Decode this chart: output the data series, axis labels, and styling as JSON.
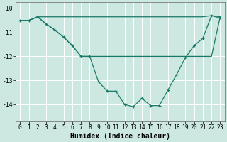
{
  "xlabel": "Humidex (Indice chaleur)",
  "bg_color": "#cce8e0",
  "grid_color": "#ffffff",
  "line_color": "#1a7a6a",
  "xlim": [
    -0.5,
    23.5
  ],
  "ylim": [
    -14.7,
    -9.75
  ],
  "yticks": [
    -14,
    -13,
    -12,
    -11,
    -10
  ],
  "xticks": [
    0,
    1,
    2,
    3,
    4,
    5,
    6,
    7,
    8,
    9,
    10,
    11,
    12,
    13,
    14,
    15,
    16,
    17,
    18,
    19,
    20,
    21,
    22,
    23
  ],
  "line_flat_x": [
    0,
    1,
    2,
    3,
    4,
    5,
    6,
    7,
    8,
    9,
    10,
    11,
    12,
    13,
    14,
    15,
    16,
    17,
    18,
    19,
    20,
    21,
    22,
    23
  ],
  "line_flat_y": [
    -10.5,
    -10.5,
    -10.35,
    -10.35,
    -10.35,
    -10.35,
    -10.35,
    -10.35,
    -10.35,
    -10.35,
    -10.35,
    -10.35,
    -10.35,
    -10.35,
    -10.35,
    -10.35,
    -10.35,
    -10.35,
    -10.35,
    -10.35,
    -10.35,
    -10.35,
    -10.3,
    -10.35
  ],
  "line_diag_x": [
    0,
    1,
    2,
    3,
    4,
    5,
    6,
    7,
    22,
    23
  ],
  "line_diag_y": [
    -10.5,
    -10.5,
    -10.35,
    -10.65,
    -10.9,
    -11.2,
    -11.55,
    -12.0,
    -12.0,
    -10.35
  ],
  "line_main_x": [
    0,
    1,
    2,
    3,
    4,
    5,
    6,
    7,
    8,
    9,
    10,
    11,
    12,
    13,
    14,
    15,
    16,
    17,
    18,
    19,
    20,
    21,
    22,
    23
  ],
  "line_main_y": [
    -10.5,
    -10.5,
    -10.35,
    -10.65,
    -10.9,
    -11.2,
    -11.55,
    -12.0,
    -12.0,
    -13.05,
    -13.45,
    -13.45,
    -14.0,
    -14.1,
    -13.75,
    -14.05,
    -14.05,
    -13.4,
    -12.75,
    -12.05,
    -11.55,
    -11.25,
    -10.3,
    -10.4
  ]
}
